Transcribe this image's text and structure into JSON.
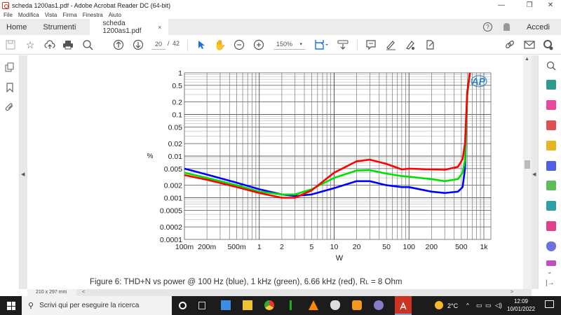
{
  "window": {
    "title": "scheda 1200as1.pdf - Adobe Acrobat Reader DC (64-bit)",
    "controls": [
      "minimize",
      "restore",
      "close"
    ]
  },
  "menu": [
    "File",
    "Modifica",
    "Vista",
    "Firma",
    "Finestra",
    "Aiuto"
  ],
  "tabs": {
    "home": "Home",
    "tools": "Strumenti",
    "document": "scheda 1200as1.pdf",
    "close": "×"
  },
  "header_right": {
    "help": "?",
    "signin": "Accedi"
  },
  "toolbar": {
    "current_page": "20",
    "page_separator": "/",
    "total_pages": "42",
    "zoom": "150%",
    "zoom_caret": "▾"
  },
  "statusbar": {
    "page_size": "210 x 297 mm"
  },
  "document": {
    "caption": "Figure 6: THD+N vs power @ 100 Hz (blue), 1 kHz (green), 6.66 kHz (red), R",
    "caption_sub": "L",
    "caption_end": " = 8 Ohm",
    "logo": "AP"
  },
  "chart_data": {
    "type": "line",
    "title": "THD+N vs power",
    "xlabel": "W",
    "ylabel": "%",
    "xscale": "log",
    "yscale": "log",
    "xlim": [
      0.1,
      1000
    ],
    "ylim": [
      0.0001,
      1
    ],
    "grid": true,
    "x_ticks": [
      "100m",
      "200m",
      "500m",
      "1",
      "2",
      "5",
      "10",
      "20",
      "50",
      "100",
      "200",
      "500",
      "1k"
    ],
    "y_ticks": [
      "1",
      "0.5",
      "0.2",
      "0.1",
      "0.05",
      "0.02",
      "0.01",
      "0.005",
      "0.002",
      "0.001",
      "0.0005",
      "0.0002",
      "0.0001"
    ],
    "series": [
      {
        "name": "100 Hz (blue)",
        "color": "#0000ff",
        "x": [
          0.1,
          0.2,
          0.5,
          1,
          2,
          3,
          5,
          10,
          20,
          30,
          50,
          80,
          100,
          200,
          300,
          450,
          520,
          560,
          600,
          650
        ],
        "y": [
          0.005,
          0.0036,
          0.0023,
          0.0016,
          0.0012,
          0.0011,
          0.0012,
          0.0017,
          0.0025,
          0.0025,
          0.002,
          0.0018,
          0.0018,
          0.0014,
          0.0013,
          0.0014,
          0.0018,
          0.005,
          0.3,
          1
        ]
      },
      {
        "name": "1 kHz (green)",
        "color": "#00e000",
        "x": [
          0.1,
          0.2,
          0.5,
          1,
          2,
          3,
          5,
          10,
          20,
          30,
          50,
          80,
          100,
          200,
          300,
          450,
          520,
          560,
          600,
          650
        ],
        "y": [
          0.004,
          0.003,
          0.002,
          0.0014,
          0.0012,
          0.0012,
          0.0016,
          0.003,
          0.0045,
          0.0046,
          0.0038,
          0.0033,
          0.0032,
          0.0028,
          0.0025,
          0.0028,
          0.004,
          0.008,
          0.3,
          1
        ]
      },
      {
        "name": "6.66 kHz (red)",
        "color": "#ff0000",
        "x": [
          0.1,
          0.2,
          0.5,
          1,
          2,
          3,
          5,
          10,
          20,
          30,
          50,
          80,
          100,
          200,
          300,
          450,
          520,
          560,
          600,
          650
        ],
        "y": [
          0.0035,
          0.0027,
          0.0018,
          0.0013,
          0.001,
          0.001,
          0.0015,
          0.004,
          0.0075,
          0.0082,
          0.0065,
          0.0048,
          0.005,
          0.0048,
          0.0047,
          0.0055,
          0.0085,
          0.02,
          0.35,
          1
        ]
      }
    ]
  },
  "taskbar": {
    "search_placeholder": "Scrivi qui per eseguire la ricerca",
    "weather": "2°C",
    "time": "12:09",
    "date": "10/01/2022"
  }
}
